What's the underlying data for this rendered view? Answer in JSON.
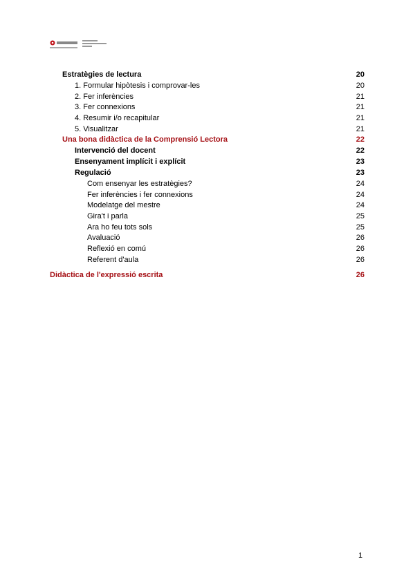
{
  "header": {
    "logo_text": "Universitat de Vic - Universitat Central de Catalunya"
  },
  "toc": [
    {
      "title": "Estratègies de lectura",
      "page": "20",
      "style": "b",
      "indent": 90
    },
    {
      "title": "1. Formular hipòtesis i comprovar-les",
      "page": "20",
      "style": "",
      "indent": 108
    },
    {
      "title": "2. Fer inferències",
      "page": "21",
      "style": "",
      "indent": 108
    },
    {
      "title": "3. Fer connexions",
      "page": "21",
      "style": "",
      "indent": 108
    },
    {
      "title": "4. Resumir i/o recapitular",
      "page": "21",
      "style": "",
      "indent": 108
    },
    {
      "title": "5. Visualitzar",
      "page": "21",
      "style": "",
      "indent": 108
    },
    {
      "title": "Una bona didàctica de la Comprensió Lectora",
      "page": "22",
      "style": "red",
      "indent": 90
    },
    {
      "title": "Intervenció del docent",
      "page": "22",
      "style": "b",
      "indent": 108
    },
    {
      "title": "Ensenyament implícit i explícit",
      "page": "23",
      "style": "b",
      "indent": 108
    },
    {
      "title": "Regulació",
      "page": "23",
      "style": "b",
      "indent": 108
    },
    {
      "title": "Com ensenyar les estratègies?",
      "page": "24",
      "style": "",
      "indent": 126
    },
    {
      "title": "Fer inferències i fer connexions",
      "page": "24",
      "style": "",
      "indent": 126
    },
    {
      "title": "Modelatge del mestre",
      "page": "24",
      "style": "",
      "indent": 126
    },
    {
      "title": "Gira't i parla",
      "page": "25",
      "style": "",
      "indent": 126
    },
    {
      "title": "Ara ho feu tots sols",
      "page": "25",
      "style": "",
      "indent": 126
    },
    {
      "title": "Avaluació",
      "page": "26",
      "style": "",
      "indent": 126
    },
    {
      "title": "Reflexió en comú",
      "page": "26",
      "style": "",
      "indent": 126
    },
    {
      "title": "Referent d'aula",
      "page": "26",
      "style": "",
      "indent": 126
    },
    {
      "title": "Didàctica de l'expressió escrita",
      "page": "26",
      "style": "red",
      "indent": 72
    }
  ],
  "footer": {
    "page_number": "1"
  },
  "colors": {
    "heading_red": "#a50f14"
  }
}
